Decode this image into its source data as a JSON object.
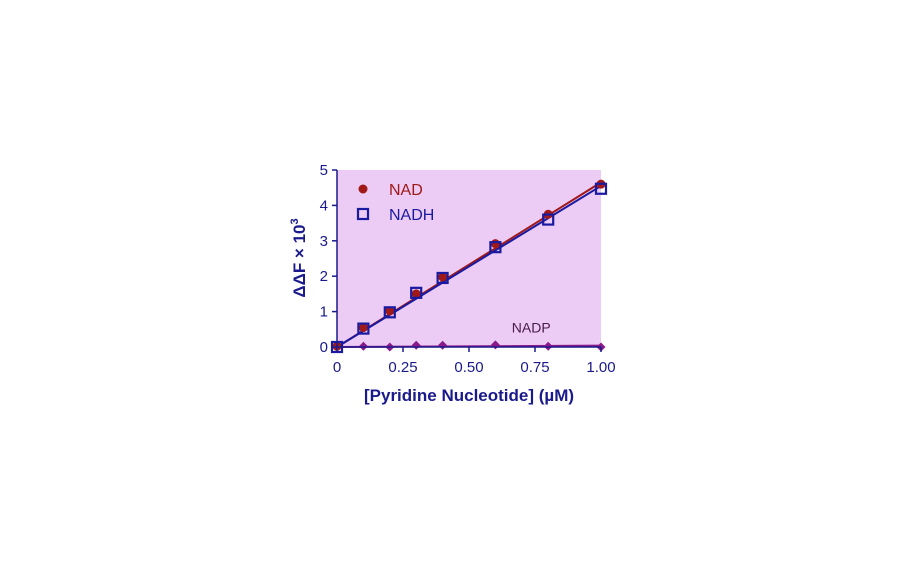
{
  "chart_data": {
    "type": "scatter",
    "xlabel": "[Pyridine Nucleotide] (µM)",
    "ylabel_prefix": "ΔΔF × 10",
    "ylabel_sup": "3",
    "xlim": [
      0,
      1.0
    ],
    "ylim": [
      0,
      5
    ],
    "x_ticks": [
      {
        "value": 0,
        "label": "0"
      },
      {
        "value": 0.25,
        "label": "0.25"
      },
      {
        "value": 0.5,
        "label": "0.50"
      },
      {
        "value": 0.75,
        "label": "0.75"
      },
      {
        "value": 1.0,
        "label": "1.00"
      }
    ],
    "y_ticks": [
      {
        "value": 0,
        "label": "0"
      },
      {
        "value": 1,
        "label": "1"
      },
      {
        "value": 2,
        "label": "2"
      },
      {
        "value": 3,
        "label": "3"
      },
      {
        "value": 4,
        "label": "4"
      },
      {
        "value": 5,
        "label": "5"
      }
    ],
    "background_color": "#ecccf5",
    "legend_position": "top-left",
    "series": [
      {
        "name": "NAD",
        "marker": "circle",
        "color": "#a01818",
        "x": [
          0,
          0.1,
          0.2,
          0.3,
          0.4,
          0.6,
          0.8,
          1.0
        ],
        "y": [
          0.02,
          0.55,
          1.02,
          1.5,
          1.98,
          2.92,
          3.75,
          4.6
        ],
        "fit": [
          [
            0,
            0
          ],
          [
            1.0,
            4.65
          ]
        ]
      },
      {
        "name": "NADH",
        "marker": "square",
        "color": "#1a1aa0",
        "x": [
          0,
          0.1,
          0.2,
          0.3,
          0.4,
          0.6,
          0.8,
          1.0
        ],
        "y": [
          0.0,
          0.52,
          0.98,
          1.53,
          1.95,
          2.82,
          3.6,
          4.47
        ],
        "fit": [
          [
            0,
            0
          ],
          [
            1.0,
            4.55
          ]
        ]
      },
      {
        "name": "NADP",
        "marker": "diamond",
        "color": "#8a1a8a",
        "x": [
          0,
          0.1,
          0.2,
          0.3,
          0.4,
          0.6,
          0.8,
          1.0
        ],
        "y": [
          0.02,
          0.02,
          0.0,
          0.05,
          0.05,
          0.06,
          0.02,
          0.0
        ],
        "fit": [
          [
            0,
            0.0
          ],
          [
            1.0,
            0.04
          ]
        ]
      }
    ],
    "annotations": [
      {
        "text": "NADP",
        "x": 0.7,
        "y": 0.35
      }
    ]
  }
}
